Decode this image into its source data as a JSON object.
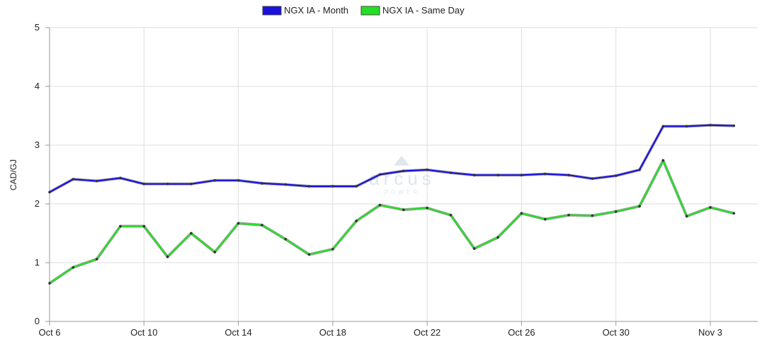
{
  "chart_data": {
    "type": "line",
    "title": "",
    "xlabel": "",
    "ylabel": "CAD/GJ",
    "ylim": [
      0,
      5
    ],
    "yticks": [
      "0",
      "1",
      "2",
      "3",
      "4",
      "5"
    ],
    "x": [
      "Oct 6",
      "Oct 7",
      "Oct 8",
      "Oct 9",
      "Oct 10",
      "Oct 11",
      "Oct 12",
      "Oct 13",
      "Oct 14",
      "Oct 15",
      "Oct 16",
      "Oct 17",
      "Oct 18",
      "Oct 19",
      "Oct 20",
      "Oct 21",
      "Oct 22",
      "Oct 23",
      "Oct 24",
      "Oct 25",
      "Oct 26",
      "Oct 27",
      "Oct 28",
      "Oct 29",
      "Oct 30",
      "Oct 31",
      "Nov 1",
      "Nov 2",
      "Nov 3",
      "Nov 4"
    ],
    "xtick_labels": [
      "Oct 6",
      "Oct 10",
      "Oct 14",
      "Oct 18",
      "Oct 22",
      "Oct 26",
      "Oct 30",
      "Nov 3"
    ],
    "series": [
      {
        "name": "NGX IA - Month",
        "color": "#1a10e0",
        "values": [
          2.2,
          2.42,
          2.39,
          2.44,
          2.34,
          2.34,
          2.34,
          2.4,
          2.4,
          2.35,
          2.33,
          2.3,
          2.3,
          2.3,
          2.5,
          2.56,
          2.58,
          2.53,
          2.49,
          2.49,
          2.49,
          2.51,
          2.49,
          2.43,
          2.48,
          2.58,
          3.32,
          3.32,
          3.34,
          3.33
        ]
      },
      {
        "name": "NGX IA - Same Day",
        "color": "#22e022",
        "values": [
          0.65,
          0.92,
          1.06,
          1.62,
          1.62,
          1.1,
          1.5,
          1.18,
          1.67,
          1.64,
          1.4,
          1.14,
          1.23,
          1.71,
          1.98,
          1.9,
          1.93,
          1.81,
          1.24,
          1.43,
          1.84,
          1.74,
          1.81,
          1.8,
          1.87,
          1.96,
          2.74,
          1.79,
          1.94,
          1.84
        ]
      }
    ],
    "grid": true,
    "legend": "top-center"
  },
  "watermark": {
    "brand": "arcus",
    "sub": "POWER"
  }
}
